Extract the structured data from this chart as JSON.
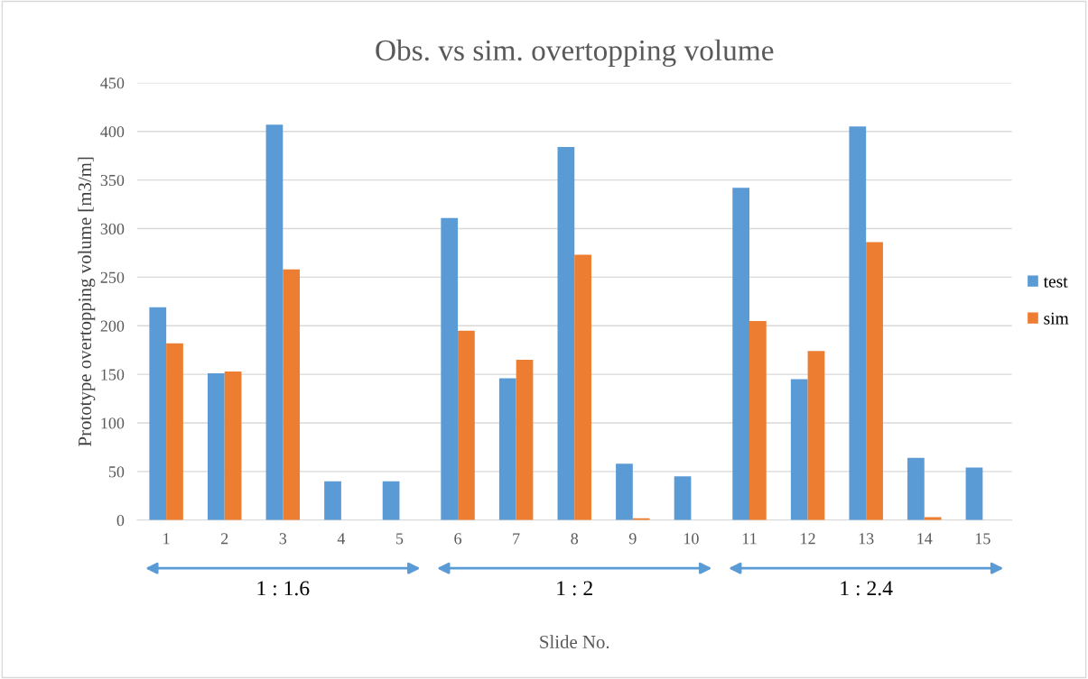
{
  "chart_data": {
    "type": "bar",
    "title": "Obs. vs sim. overtopping volume",
    "xlabel": "Slide No.",
    "ylabel": "Prototype overtopping volume [m3/m]",
    "categories": [
      "1",
      "2",
      "3",
      "4",
      "5",
      "6",
      "7",
      "8",
      "9",
      "10",
      "11",
      "12",
      "13",
      "14",
      "15"
    ],
    "series": [
      {
        "name": "test",
        "color": "#5b9bd5",
        "values": [
          219,
          151,
          407,
          40,
          40,
          311,
          146,
          384,
          58,
          45,
          342,
          145,
          405,
          64,
          54
        ]
      },
      {
        "name": "sim",
        "color": "#ed7d31",
        "values": [
          182,
          153,
          258,
          0,
          0,
          195,
          165,
          273,
          2,
          0,
          205,
          174,
          286,
          3,
          0
        ]
      }
    ],
    "ylim": [
      0,
      450
    ],
    "yticks": [
      0,
      50,
      100,
      150,
      200,
      250,
      300,
      350,
      400,
      450
    ],
    "grid": "y",
    "legend": "right",
    "annotations": [
      "1 : 1.6",
      "1 : 2",
      "1 : 2.4"
    ]
  }
}
